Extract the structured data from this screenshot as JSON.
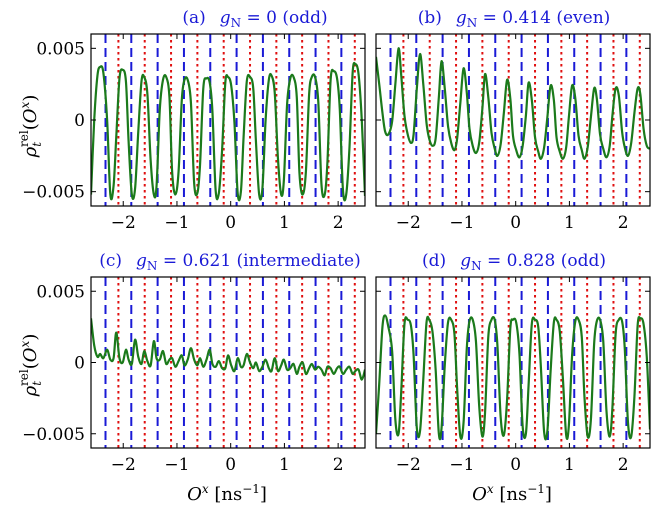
{
  "colors": {
    "curve": "#1b7a1b",
    "blue_line": "#1a1ad6",
    "red_line": "#e01010",
    "title_text": "#1a1ad6",
    "axes": "#000000"
  },
  "shared": {
    "xlabel": "O^x [ns^-1]",
    "ylabel": "ρ_t^rel(O^x)",
    "xlim": [
      -2.6,
      2.5
    ],
    "ylim": [
      -0.006,
      0.006
    ],
    "xticks": [
      -2,
      -1,
      0,
      1,
      2
    ],
    "xtick_labels": [
      "−2",
      "−1",
      "0",
      "1",
      "2"
    ],
    "yticks": [
      -0.005,
      0,
      0.005
    ],
    "ytick_labels": [
      "−0.005",
      "0",
      "0.005"
    ],
    "blue_dashed_x": [
      -2.33,
      -1.85,
      -1.36,
      -0.87,
      -0.38,
      0.11,
      0.6,
      1.09,
      1.58,
      2.06
    ],
    "red_dotted_x": [
      -2.09,
      -1.6,
      -1.11,
      -0.62,
      -0.13,
      0.36,
      0.85,
      1.33,
      1.82,
      2.31
    ]
  },
  "panels": [
    {
      "title_prefix": "(a)",
      "title_g": "g",
      "title_sub": "N",
      "title_rest": " = 0 (odd)"
    },
    {
      "title_prefix": "(b)",
      "title_g": "g",
      "title_sub": "N",
      "title_rest": " = 0.414 (even)"
    },
    {
      "title_prefix": "(c)",
      "title_g": "g",
      "title_sub": "N",
      "title_rest": " = 0.621 (intermediate)"
    },
    {
      "title_prefix": "(d)",
      "title_g": "g",
      "title_sub": "N",
      "title_rest": " = 0.828 (odd)"
    }
  ],
  "chart_data": [
    {
      "type": "line",
      "title": "(a) gN = 0 (odd)",
      "xlabel": "",
      "ylabel": "ρ_t^rel(O^x)",
      "xlim": [
        -2.6,
        2.5
      ],
      "ylim": [
        -0.006,
        0.006
      ],
      "series": [
        {
          "x": [
            -2.6,
            -2.54,
            -2.48,
            -2.43,
            -2.37,
            -2.3,
            -2.24,
            -2.18,
            -2.13,
            -2.07,
            -2.01,
            -1.95,
            -1.9,
            -1.84,
            -1.78,
            -1.72,
            -1.66,
            -1.61,
            -1.55,
            -1.49,
            -1.43,
            -1.38,
            -1.32,
            -1.26,
            -1.2,
            -1.14,
            -1.09,
            -1.03,
            -0.97,
            -0.91,
            -0.86,
            -0.8,
            -0.74,
            -0.68,
            -0.62,
            -0.57,
            -0.51,
            -0.45,
            -0.39,
            -0.34,
            -0.28,
            -0.22,
            -0.16,
            -0.1,
            -0.05,
            0.01,
            0.07,
            0.13,
            0.19,
            0.24,
            0.3,
            0.36,
            0.42,
            0.47,
            0.53,
            0.59,
            0.65,
            0.71,
            0.76,
            0.82,
            0.88,
            0.94,
            0.99,
            1.05,
            1.11,
            1.17,
            1.23,
            1.28,
            1.34,
            1.4,
            1.46,
            1.51,
            1.57,
            1.63,
            1.69,
            1.75,
            1.8,
            1.86,
            1.92,
            1.98,
            2.03,
            2.09,
            2.15,
            2.21,
            2.27,
            2.32,
            2.38,
            2.44,
            2.5
          ],
          "y": [
            -0.0052,
            0.0,
            0.0031,
            0.0037,
            0.0033,
            0.0,
            -0.0052,
            -0.0046,
            -0.0012,
            0.0029,
            0.0035,
            0.0027,
            -0.0015,
            -0.0052,
            -0.0048,
            -0.0008,
            0.0027,
            0.003,
            0.0018,
            -0.0028,
            -0.0052,
            -0.0046,
            0.0007,
            0.0028,
            0.003,
            0.0016,
            -0.0036,
            -0.0052,
            -0.0036,
            0.0014,
            0.0028,
            0.0028,
            0.0012,
            -0.0044,
            -0.0051,
            -0.0031,
            0.0022,
            0.0029,
            0.0026,
            0.0006,
            -0.0049,
            -0.0051,
            -0.0021,
            0.0026,
            0.003,
            0.0024,
            -0.0002,
            -0.0051,
            -0.005,
            -0.0012,
            0.0027,
            0.003,
            0.0022,
            -0.0015,
            -0.0052,
            -0.0048,
            0.0,
            0.0028,
            0.0031,
            0.0019,
            -0.0027,
            -0.0052,
            -0.0042,
            0.0011,
            0.0029,
            0.003,
            0.0016,
            -0.0037,
            -0.0052,
            -0.0036,
            0.0018,
            0.003,
            0.003,
            0.0013,
            -0.0045,
            -0.0052,
            -0.003,
            0.0028,
            0.0034,
            0.0029,
            0.0008,
            -0.0049,
            -0.0052,
            -0.002,
            0.0033,
            0.0039,
            0.0032,
            0.0,
            -0.0053
          ]
        }
      ]
    },
    {
      "type": "line",
      "title": "(b) gN = 0.414 (even)",
      "xlabel": "",
      "ylabel": "",
      "xlim": [
        -2.6,
        2.5
      ],
      "ylim": [
        -0.006,
        0.006
      ],
      "series": [
        {
          "x": [
            -2.6,
            -2.54,
            -2.48,
            -2.43,
            -2.37,
            -2.3,
            -2.24,
            -2.18,
            -2.13,
            -2.07,
            -2.01,
            -1.95,
            -1.9,
            -1.84,
            -1.78,
            -1.72,
            -1.66,
            -1.61,
            -1.55,
            -1.49,
            -1.43,
            -1.38,
            -1.32,
            -1.26,
            -1.2,
            -1.14,
            -1.09,
            -1.03,
            -0.97,
            -0.91,
            -0.86,
            -0.8,
            -0.74,
            -0.68,
            -0.62,
            -0.57,
            -0.51,
            -0.45,
            -0.39,
            -0.34,
            -0.28,
            -0.22,
            -0.16,
            -0.1,
            -0.05,
            0.01,
            0.07,
            0.13,
            0.19,
            0.24,
            0.3,
            0.36,
            0.42,
            0.47,
            0.53,
            0.59,
            0.65,
            0.71,
            0.76,
            0.82,
            0.88,
            0.94,
            0.99,
            1.05,
            1.11,
            1.17,
            1.23,
            1.28,
            1.34,
            1.4,
            1.46,
            1.51,
            1.57,
            1.63,
            1.69,
            1.75,
            1.8,
            1.86,
            1.92,
            1.98,
            2.03,
            2.09,
            2.15,
            2.21,
            2.27,
            2.32,
            2.38,
            2.44,
            2.5
          ],
          "y": [
            0.0044,
            0.0025,
            0.0005,
            -0.0008,
            -0.001,
            -0.0001,
            0.0025,
            0.005,
            0.0031,
            0.0003,
            -0.001,
            -0.0016,
            -0.001,
            0.0022,
            0.0046,
            0.0025,
            -0.0002,
            -0.0013,
            -0.0018,
            -0.0013,
            0.0016,
            0.0041,
            0.0022,
            -0.0004,
            -0.0016,
            -0.0021,
            -0.0013,
            0.0012,
            0.0036,
            0.0019,
            -0.0006,
            -0.0018,
            -0.0023,
            -0.0016,
            0.0008,
            0.0032,
            0.0016,
            -0.0009,
            -0.002,
            -0.0025,
            -0.0017,
            0.0005,
            0.0028,
            0.0015,
            -0.0011,
            -0.0021,
            -0.0026,
            -0.0018,
            0.0003,
            0.0026,
            0.0014,
            -0.0012,
            -0.0022,
            -0.0027,
            -0.0019,
            0.0002,
            0.0024,
            0.0014,
            -0.0012,
            -0.0022,
            -0.0027,
            -0.0019,
            0.0002,
            0.0024,
            0.0015,
            -0.0011,
            -0.0021,
            -0.0027,
            -0.0019,
            0.0002,
            0.0022,
            0.0015,
            -0.001,
            -0.002,
            -0.0026,
            -0.0018,
            0.0003,
            0.0022,
            0.0017,
            -0.0008,
            -0.0019,
            -0.0025,
            -0.0016,
            0.0005,
            0.0022,
            0.0018,
            -0.0006,
            -0.0018,
            -0.002
          ]
        }
      ]
    },
    {
      "type": "line",
      "title": "(c) gN = 0.621 (intermediate)",
      "xlabel": "O^x [ns^-1]",
      "ylabel": "ρ_t^rel(O^x)",
      "xlim": [
        -2.6,
        2.5
      ],
      "ylim": [
        -0.006,
        0.006
      ],
      "series": [
        {
          "x": [
            -2.6,
            -2.54,
            -2.48,
            -2.43,
            -2.37,
            -2.3,
            -2.24,
            -2.18,
            -2.13,
            -2.07,
            -2.01,
            -1.95,
            -1.9,
            -1.84,
            -1.78,
            -1.72,
            -1.66,
            -1.61,
            -1.55,
            -1.49,
            -1.43,
            -1.38,
            -1.32,
            -1.26,
            -1.2,
            -1.14,
            -1.09,
            -1.03,
            -0.97,
            -0.91,
            -0.86,
            -0.8,
            -0.74,
            -0.68,
            -0.62,
            -0.57,
            -0.51,
            -0.45,
            -0.39,
            -0.34,
            -0.28,
            -0.22,
            -0.16,
            -0.1,
            -0.05,
            0.01,
            0.07,
            0.13,
            0.19,
            0.24,
            0.3,
            0.36,
            0.42,
            0.47,
            0.53,
            0.59,
            0.65,
            0.71,
            0.76,
            0.82,
            0.88,
            0.94,
            0.99,
            1.05,
            1.11,
            1.17,
            1.23,
            1.28,
            1.34,
            1.4,
            1.46,
            1.51,
            1.57,
            1.63,
            1.69,
            1.75,
            1.8,
            1.86,
            1.92,
            1.98,
            2.03,
            2.09,
            2.15,
            2.21,
            2.27,
            2.32,
            2.38,
            2.44,
            2.5
          ],
          "y": [
            0.0031,
            0.0012,
            0.0004,
            0.0006,
            0.0003,
            0.0009,
            0.0002,
            0.0003,
            0.0021,
            0.0003,
            0.0,
            0.0009,
            0.0002,
            -0.0001,
            0.0016,
            0.0004,
            -0.0001,
            0.0008,
            0.0001,
            -0.0002,
            0.0015,
            0.0003,
            0.0002,
            0.0008,
            -0.0001,
            0.0002,
            0.0003,
            -0.0003,
            0.0001,
            0.0005,
            -0.0002,
            0.0002,
            0.001,
            0.0002,
            -0.0002,
            0.0003,
            -0.0003,
            0.0002,
            0.0009,
            -0.0001,
            -0.0003,
            0.0001,
            -0.0004,
            -0.0004,
            0.0005,
            -0.0002,
            -0.0006,
            0.0003,
            -0.0003,
            -0.0002,
            0.0006,
            0.0,
            -0.0004,
            0.0,
            -0.0006,
            -0.0003,
            0.0002,
            -0.0004,
            -0.0006,
            0.0003,
            -0.0006,
            -0.0002,
            0.0002,
            -0.0005,
            -0.0004,
            -0.0001,
            -0.0008,
            -0.0003,
            0.0,
            -0.0008,
            -0.0004,
            -0.0001,
            -0.0005,
            -0.0003,
            -0.0005,
            -0.0009,
            -0.0003,
            -0.0004,
            -0.0008,
            -0.0004,
            -0.0003,
            -0.0008,
            -0.0005,
            -0.0003,
            -0.0008,
            -0.0006,
            -0.0005,
            -0.0012,
            -0.0005
          ]
        }
      ]
    },
    {
      "type": "line",
      "title": "(d) gN = 0.828 (odd)",
      "xlabel": "O^x [ns^-1]",
      "ylabel": "",
      "xlim": [
        -2.6,
        2.5
      ],
      "ylim": [
        -0.006,
        0.006
      ],
      "series": [
        {
          "x": [
            -2.6,
            -2.54,
            -2.48,
            -2.43,
            -2.37,
            -2.3,
            -2.24,
            -2.18,
            -2.13,
            -2.07,
            -2.01,
            -1.95,
            -1.9,
            -1.84,
            -1.78,
            -1.72,
            -1.66,
            -1.61,
            -1.55,
            -1.49,
            -1.43,
            -1.38,
            -1.32,
            -1.26,
            -1.2,
            -1.14,
            -1.09,
            -1.03,
            -0.97,
            -0.91,
            -0.86,
            -0.8,
            -0.74,
            -0.68,
            -0.62,
            -0.57,
            -0.51,
            -0.45,
            -0.39,
            -0.34,
            -0.28,
            -0.22,
            -0.16,
            -0.1,
            -0.05,
            0.01,
            0.07,
            0.13,
            0.19,
            0.24,
            0.3,
            0.36,
            0.42,
            0.47,
            0.53,
            0.59,
            0.65,
            0.71,
            0.76,
            0.82,
            0.88,
            0.94,
            0.99,
            1.05,
            1.11,
            1.17,
            1.23,
            1.28,
            1.34,
            1.4,
            1.46,
            1.51,
            1.57,
            1.63,
            1.69,
            1.75,
            1.8,
            1.86,
            1.92,
            1.98,
            2.03,
            2.09,
            2.15,
            2.21,
            2.27,
            2.32,
            2.38,
            2.44,
            2.5
          ],
          "y": [
            -0.005,
            -0.0015,
            0.0025,
            0.0033,
            0.0025,
            0.0008,
            -0.004,
            -0.005,
            -0.002,
            0.0027,
            0.003,
            0.0026,
            0.0005,
            -0.0046,
            -0.0048,
            -0.0012,
            0.0028,
            0.003,
            0.0022,
            -0.0005,
            -0.005,
            -0.0046,
            -0.0002,
            0.0028,
            0.003,
            0.002,
            -0.0018,
            -0.0052,
            -0.0042,
            0.001,
            0.0029,
            0.003,
            0.0015,
            -0.003,
            -0.0052,
            -0.0035,
            0.0018,
            0.003,
            0.003,
            0.0012,
            -0.0038,
            -0.0051,
            -0.0026,
            0.0024,
            0.003,
            0.0028,
            0.0006,
            -0.0045,
            -0.005,
            -0.0016,
            0.0027,
            0.003,
            0.0025,
            -0.0004,
            -0.0049,
            -0.0048,
            -0.0006,
            0.0028,
            0.003,
            0.0022,
            -0.0012,
            -0.0051,
            -0.0044,
            0.0005,
            0.0029,
            0.003,
            0.0018,
            -0.0024,
            -0.0052,
            -0.004,
            0.0013,
            0.0029,
            0.003,
            0.0015,
            -0.0034,
            -0.0052,
            -0.0032,
            0.002,
            0.003,
            0.0029,
            0.001,
            -0.0042,
            -0.0052,
            -0.0024,
            0.0026,
            0.0031,
            0.0027,
            0.0004,
            -0.0047
          ]
        }
      ]
    }
  ]
}
